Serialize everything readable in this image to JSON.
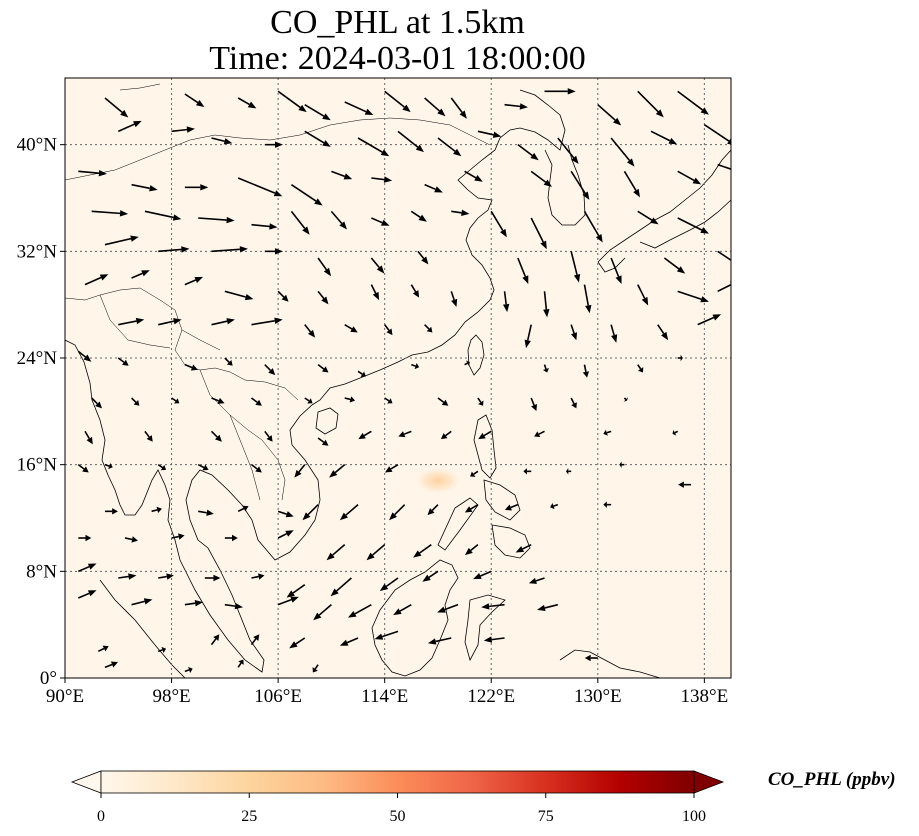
{
  "title": {
    "line1": "CO_PHL at 1.5km",
    "line2": "Time: 2024-03-01 18:00:00"
  },
  "map": {
    "extent": {
      "lon": [
        90,
        140
      ],
      "lat": [
        0,
        45
      ]
    },
    "gridlines": true,
    "background_color": "#fff5e9",
    "x_ticks": [
      {
        "value": 90,
        "label": "90°E"
      },
      {
        "value": 98,
        "label": "98°E"
      },
      {
        "value": 106,
        "label": "106°E"
      },
      {
        "value": 114,
        "label": "114°E"
      },
      {
        "value": 122,
        "label": "122°E"
      },
      {
        "value": 130,
        "label": "130°E"
      },
      {
        "value": 138,
        "label": "138°E"
      }
    ],
    "y_ticks": [
      {
        "value": 0,
        "label": "0°"
      },
      {
        "value": 8,
        "label": "8°N"
      },
      {
        "value": 16,
        "label": "16°N"
      },
      {
        "value": 24,
        "label": "24°N"
      },
      {
        "value": 32,
        "label": "32°N"
      },
      {
        "value": 40,
        "label": "40°N"
      }
    ],
    "hotspots": [
      {
        "lon": 118.0,
        "lat": 14.8,
        "value": 18
      }
    ]
  },
  "colorbar": {
    "label": "CO_PHL (ppbv)",
    "min": 0,
    "max": 100,
    "extend": "both",
    "colormap": "OrRd",
    "stops": [
      "#fff7ec",
      "#fee8c8",
      "#fdd49e",
      "#fdbb84",
      "#fc8d59",
      "#ef6548",
      "#d7301f",
      "#b30000",
      "#7f0000"
    ],
    "ticks": [
      {
        "value": 0,
        "label": "0"
      },
      {
        "value": 25,
        "label": "25"
      },
      {
        "value": 50,
        "label": "50"
      },
      {
        "value": 75,
        "label": "75"
      },
      {
        "value": 100,
        "label": "100"
      }
    ]
  },
  "wind_vectors": [
    [
      93,
      43.5,
      1.8,
      -1.5
    ],
    [
      99,
      43.8,
      1.5,
      -1.0
    ],
    [
      103,
      43.5,
      1.4,
      -0.8
    ],
    [
      106,
      44,
      2.2,
      -1.6
    ],
    [
      108,
      43,
      2.0,
      -1.2
    ],
    [
      111,
      43.2,
      2.2,
      -1.0
    ],
    [
      114,
      44,
      2.0,
      -1.6
    ],
    [
      117,
      43.5,
      1.6,
      -1.4
    ],
    [
      119,
      43.5,
      1.2,
      -1.6
    ],
    [
      123,
      43,
      1.8,
      -0.2
    ],
    [
      126,
      44,
      2.4,
      0.0
    ],
    [
      130,
      43,
      1.8,
      -1.6
    ],
    [
      133,
      44,
      2.0,
      -2.0
    ],
    [
      136,
      44,
      2.4,
      -1.8
    ],
    [
      94,
      41,
      1.8,
      0.8
    ],
    [
      98,
      41,
      1.8,
      0.2
    ],
    [
      101,
      40.5,
      1.6,
      -0.4
    ],
    [
      105,
      40,
      1.4,
      0.0
    ],
    [
      108,
      41,
      2.0,
      -1.2
    ],
    [
      112,
      40.5,
      2.4,
      -1.4
    ],
    [
      115,
      41,
      2.0,
      -1.6
    ],
    [
      118,
      40.5,
      1.8,
      -1.4
    ],
    [
      121,
      41,
      1.8,
      -0.4
    ],
    [
      124,
      40,
      1.6,
      -1.2
    ],
    [
      127,
      40.5,
      1.6,
      -2.0
    ],
    [
      131,
      40.5,
      1.8,
      -2.2
    ],
    [
      134,
      41,
      2.0,
      -1.0
    ],
    [
      138,
      41.5,
      2.4,
      -1.6
    ],
    [
      91,
      38,
      2.2,
      -0.2
    ],
    [
      95,
      37,
      2.0,
      -0.4
    ],
    [
      99,
      36.8,
      1.8,
      0.0
    ],
    [
      103,
      37.5,
      3.4,
      -1.4
    ],
    [
      107,
      37,
      2.4,
      -1.6
    ],
    [
      110,
      38,
      1.6,
      -0.6
    ],
    [
      113,
      37.5,
      1.6,
      -0.2
    ],
    [
      117,
      37,
      1.4,
      -0.6
    ],
    [
      120,
      38,
      1.4,
      -0.8
    ],
    [
      125,
      38,
      1.6,
      -1.2
    ],
    [
      128,
      38,
      1.4,
      -2.2
    ],
    [
      132,
      38,
      1.2,
      -2.0
    ],
    [
      136,
      38,
      1.8,
      -1.0
    ],
    [
      139,
      38.5,
      1.8,
      -0.6
    ],
    [
      92,
      35,
      2.8,
      -0.2
    ],
    [
      96,
      35,
      2.8,
      -0.6
    ],
    [
      100,
      34.5,
      2.8,
      -0.2
    ],
    [
      104,
      34,
      2.0,
      -0.2
    ],
    [
      107,
      35,
      1.4,
      -1.8
    ],
    [
      110,
      35,
      1.2,
      -1.4
    ],
    [
      113,
      34.5,
      1.4,
      -0.6
    ],
    [
      116,
      35,
      1.2,
      -0.8
    ],
    [
      119,
      35,
      1.4,
      -0.2
    ],
    [
      122,
      35,
      1.2,
      -2.0
    ],
    [
      125,
      34.5,
      1.2,
      -2.4
    ],
    [
      129,
      35,
      1.4,
      -2.4
    ],
    [
      133,
      35,
      1.6,
      -1.0
    ],
    [
      136,
      34.5,
      2.4,
      -1.2
    ],
    [
      93,
      32.5,
      2.6,
      0.6
    ],
    [
      97,
      32,
      2.4,
      0.2
    ],
    [
      101,
      32,
      2.8,
      0.2
    ],
    [
      105,
      32,
      1.4,
      0.0
    ],
    [
      109,
      31.5,
      1.0,
      -1.4
    ],
    [
      113,
      31.5,
      1.0,
      -1.2
    ],
    [
      116.5,
      32,
      0.8,
      -1.0
    ],
    [
      124,
      31.5,
      0.8,
      -2.0
    ],
    [
      128,
      32,
      0.6,
      -2.4
    ],
    [
      131,
      31.5,
      0.8,
      -2.0
    ],
    [
      135,
      31.5,
      1.6,
      -1.2
    ],
    [
      139,
      32,
      1.8,
      -1.2
    ],
    [
      91.5,
      29.5,
      1.8,
      0.8
    ],
    [
      95,
      30,
      1.4,
      0.6
    ],
    [
      99,
      29.5,
      1.4,
      0.6
    ],
    [
      102,
      29,
      2.2,
      -0.6
    ],
    [
      106,
      29,
      0.8,
      -0.8
    ],
    [
      109,
      29,
      0.8,
      -1.0
    ],
    [
      113,
      29.5,
      0.6,
      -1.2
    ],
    [
      116,
      29.5,
      0.6,
      -1.0
    ],
    [
      119,
      29,
      0.4,
      -1.2
    ],
    [
      123,
      29,
      0.2,
      -1.6
    ],
    [
      126,
      29,
      0.2,
      -2.0
    ],
    [
      129,
      29.5,
      0.4,
      -2.2
    ],
    [
      133,
      29.5,
      0.8,
      -1.6
    ],
    [
      136,
      29,
      2.4,
      -0.8
    ],
    [
      139,
      29,
      1.6,
      0.8
    ],
    [
      94,
      26.5,
      2.0,
      0.4
    ],
    [
      97,
      26.5,
      1.8,
      0.4
    ],
    [
      101,
      26.5,
      1.8,
      0.4
    ],
    [
      104,
      26.5,
      2.4,
      0.4
    ],
    [
      108,
      26.5,
      0.8,
      -1.0
    ],
    [
      111,
      26.5,
      1.0,
      -0.6
    ],
    [
      114,
      26.5,
      0.6,
      -0.8
    ],
    [
      117,
      26.5,
      0.6,
      -0.6
    ],
    [
      125,
      26.5,
      -0.4,
      -1.8
    ],
    [
      128,
      26.5,
      0.4,
      -1.2
    ],
    [
      131,
      26.5,
      0.4,
      -1.4
    ],
    [
      134.5,
      26.5,
      0.8,
      -1.2
    ],
    [
      137.5,
      26.5,
      1.8,
      0.8
    ],
    [
      91,
      24.5,
      1.0,
      -0.8
    ],
    [
      94,
      24,
      0.8,
      -0.6
    ],
    [
      99,
      23.5,
      1.0,
      -0.4
    ],
    [
      102,
      24,
      0.6,
      -0.6
    ],
    [
      105,
      23.5,
      0.8,
      -0.8
    ],
    [
      109,
      23.5,
      0.8,
      -0.6
    ],
    [
      112,
      23,
      0.6,
      -0.4
    ],
    [
      116,
      23.5,
      0.6,
      -0.2
    ],
    [
      120,
      23.5,
      0.4,
      0.2
    ],
    [
      126,
      23.5,
      0.2,
      -0.6
    ],
    [
      129,
      23.5,
      0.2,
      -1.0
    ],
    [
      133,
      23.5,
      0.4,
      -0.6
    ],
    [
      136,
      24,
      0.4,
      0.0
    ],
    [
      92,
      21,
      0.8,
      -0.8
    ],
    [
      95,
      21,
      0.6,
      -0.6
    ],
    [
      98,
      21,
      0.6,
      -0.4
    ],
    [
      101,
      21,
      1.0,
      -0.4
    ],
    [
      104,
      21,
      0.8,
      -0.6
    ],
    [
      108,
      21,
      0.6,
      -0.4
    ],
    [
      111,
      21,
      0.8,
      -0.2
    ],
    [
      114,
      21,
      0.6,
      -0.4
    ],
    [
      118,
      21,
      0.8,
      -0.6
    ],
    [
      121,
      21,
      0.4,
      -0.6
    ],
    [
      125,
      21,
      0.4,
      -1.0
    ],
    [
      128,
      21,
      0.4,
      -0.8
    ],
    [
      132,
      21,
      0.2,
      -0.2
    ],
    [
      91.5,
      18.5,
      0.6,
      -1.0
    ],
    [
      96,
      18.5,
      0.6,
      -0.8
    ],
    [
      101,
      18.5,
      0.8,
      -0.8
    ],
    [
      105,
      18.5,
      0.6,
      -0.8
    ],
    [
      109,
      18,
      0.8,
      -0.6
    ],
    [
      113,
      18.5,
      -1.0,
      -0.6
    ],
    [
      116,
      18.5,
      -1.0,
      -0.4
    ],
    [
      119,
      18.5,
      -0.8,
      -0.6
    ],
    [
      122,
      18.5,
      -1.0,
      -0.6
    ],
    [
      126,
      18.5,
      -0.8,
      -0.4
    ],
    [
      131,
      18.5,
      -0.6,
      -0.2
    ],
    [
      136,
      18.5,
      -0.4,
      -0.2
    ],
    [
      91,
      16,
      0.8,
      -0.6
    ],
    [
      93,
      16,
      0.6,
      -0.2
    ],
    [
      97,
      16,
      0.6,
      -0.4
    ],
    [
      100,
      16,
      0.8,
      -0.4
    ],
    [
      104,
      16,
      0.8,
      -0.6
    ],
    [
      108,
      16,
      -0.8,
      -1.0
    ],
    [
      111,
      16,
      -1.2,
      -1.0
    ],
    [
      115,
      16,
      -1.0,
      -0.6
    ],
    [
      121,
      15.5,
      -0.6,
      -0.4
    ],
    [
      125,
      15.5,
      -0.6,
      0.0
    ],
    [
      128,
      15.5,
      -0.4,
      0.0
    ],
    [
      132,
      16,
      -0.4,
      0.0
    ],
    [
      137,
      14.5,
      -1.0,
      0.0
    ],
    [
      93,
      12.5,
      1.0,
      0.0
    ],
    [
      96.5,
      12.5,
      0.8,
      0.2
    ],
    [
      100,
      12.5,
      1.2,
      -0.2
    ],
    [
      103,
      12.5,
      0.8,
      0.4
    ],
    [
      106,
      12.5,
      1.2,
      -0.4
    ],
    [
      109,
      13,
      -1.2,
      -1.2
    ],
    [
      112,
      13,
      -1.4,
      -1.2
    ],
    [
      115.5,
      13,
      -1.2,
      -1.2
    ],
    [
      118,
      13,
      -0.8,
      -0.8
    ],
    [
      121,
      13,
      -1.0,
      -0.6
    ],
    [
      124,
      13,
      -1.0,
      -0.4
    ],
    [
      127,
      13,
      -0.6,
      -0.2
    ],
    [
      131,
      13,
      -0.6,
      0.0
    ],
    [
      91,
      10.5,
      1.0,
      0.0
    ],
    [
      94.5,
      10.5,
      1.0,
      -0.2
    ],
    [
      98,
      10.5,
      1.0,
      0.2
    ],
    [
      102,
      10.5,
      1.0,
      0.0
    ],
    [
      106,
      10.5,
      1.2,
      0.6
    ],
    [
      111,
      10,
      -1.4,
      -1.2
    ],
    [
      114,
      10,
      -1.4,
      -1.2
    ],
    [
      117.5,
      10,
      -1.4,
      -1.0
    ],
    [
      121,
      10,
      -1.0,
      -0.8
    ],
    [
      125,
      10,
      -1.2,
      -0.6
    ],
    [
      91,
      8,
      1.4,
      0.6
    ],
    [
      94,
      7.5,
      1.4,
      0.2
    ],
    [
      97,
      7.5,
      1.2,
      0.2
    ],
    [
      100.5,
      7.5,
      1.2,
      0.0
    ],
    [
      104,
      7.5,
      1.0,
      0.2
    ],
    [
      108,
      7,
      -1.4,
      -1.0
    ],
    [
      111.5,
      7.5,
      -1.6,
      -1.4
    ],
    [
      115,
      7.5,
      -1.4,
      -1.0
    ],
    [
      118,
      8,
      -1.2,
      -0.8
    ],
    [
      122,
      8,
      -1.4,
      -0.6
    ],
    [
      126,
      7.5,
      -1.2,
      -0.4
    ],
    [
      91,
      6,
      1.4,
      0.6
    ],
    [
      95,
      5.5,
      1.6,
      0.4
    ],
    [
      99,
      5.5,
      1.4,
      0.2
    ],
    [
      102,
      5.5,
      1.4,
      -0.2
    ],
    [
      106,
      5.5,
      1.6,
      0.6
    ],
    [
      110,
      5.5,
      -1.4,
      -1.2
    ],
    [
      113,
      5.5,
      -1.8,
      -1.0
    ],
    [
      116,
      5.5,
      -1.4,
      -0.8
    ],
    [
      119.5,
      5.5,
      -1.6,
      -0.6
    ],
    [
      123,
      5.5,
      -1.8,
      -0.2
    ],
    [
      127,
      5.5,
      -1.6,
      -0.4
    ],
    [
      92.5,
      2,
      0.8,
      0.4
    ],
    [
      97,
      2,
      0.6,
      0.2
    ],
    [
      101,
      2.5,
      0.6,
      0.8
    ],
    [
      104,
      2.5,
      0.6,
      0.8
    ],
    [
      108,
      3,
      -1.2,
      -0.8
    ],
    [
      112,
      3,
      -1.4,
      -0.6
    ],
    [
      115,
      3.5,
      -1.8,
      -0.6
    ],
    [
      119,
      3,
      -1.8,
      -0.4
    ],
    [
      123,
      3,
      -1.6,
      -0.2
    ],
    [
      130,
      1.5,
      -1.0,
      0.0
    ],
    [
      93,
      0.8,
      1.0,
      0.4
    ],
    [
      99,
      0.5,
      0.6,
      0.2
    ],
    [
      103,
      0.8,
      0.4,
      0.6
    ],
    [
      109,
      1,
      -0.4,
      -0.6
    ]
  ]
}
